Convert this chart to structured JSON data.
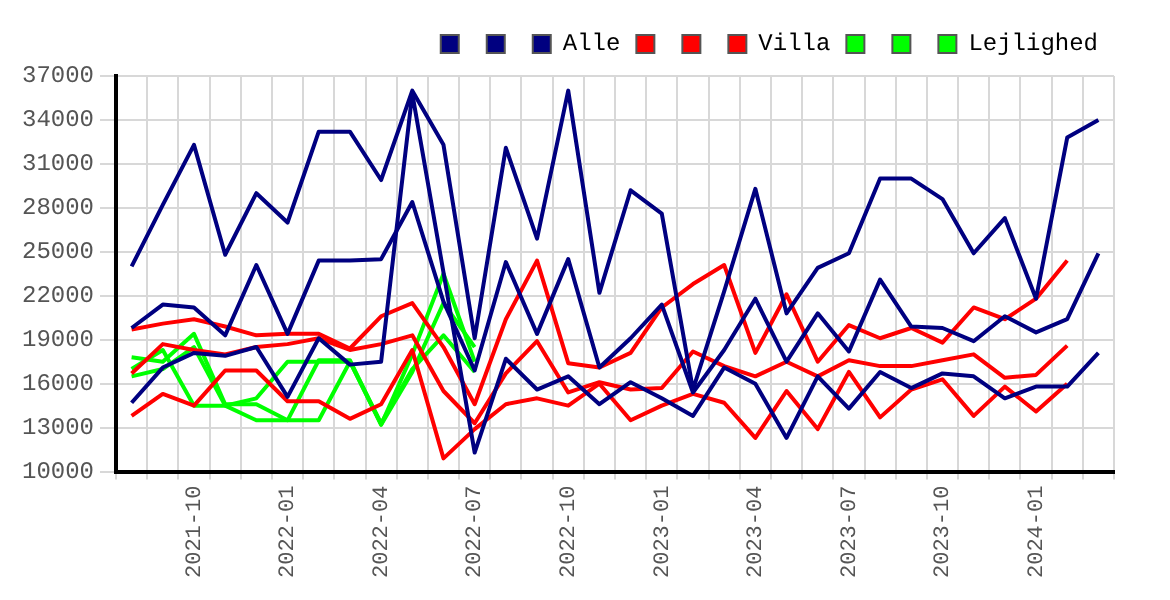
{
  "chart_data": {
    "type": "line",
    "categories": [
      null,
      null,
      "2021-10",
      null,
      null,
      "2022-01",
      null,
      null,
      "2022-04",
      null,
      null,
      "2022-07",
      null,
      null,
      "2022-10",
      null,
      null,
      "2023-01",
      null,
      null,
      "2023-04",
      null,
      null,
      "2023-07",
      null,
      null,
      "2023-10",
      null,
      null,
      "2024-01",
      null,
      null
    ],
    "series": [
      {
        "color": "#000080",
        "values": [
          24000,
          28200,
          32300,
          24800,
          29000,
          27000,
          33200,
          33200,
          29900,
          36000,
          32300,
          19100,
          32100,
          25900,
          36000,
          22200,
          29200,
          27600,
          15600,
          22300,
          29300,
          20800,
          23900,
          24900,
          30000,
          30000,
          28600,
          24900,
          27300,
          21800,
          32800,
          34000
        ]
      },
      {
        "color": "#000080",
        "values": [
          19800,
          21400,
          21200,
          19300,
          24100,
          19400,
          24400,
          24400,
          24500,
          28400,
          21600,
          16900,
          24300,
          19400,
          24500,
          17100,
          19100,
          21400,
          15400,
          18300,
          21800,
          17500,
          20800,
          18200,
          23100,
          19900,
          19800,
          18900,
          20600,
          19500,
          20400,
          24900
        ]
      },
      {
        "name": "Alle",
        "color": "#000080",
        "values": [
          14700,
          17100,
          18100,
          17900,
          18500,
          15100,
          19100,
          17300,
          17500,
          35800,
          23600,
          11300,
          17700,
          15600,
          16500,
          14600,
          16100,
          15000,
          13800,
          17100,
          16000,
          12300,
          16500,
          14300,
          16800,
          15700,
          16700,
          16500,
          15000,
          15800,
          15800,
          18100
        ]
      },
      {
        "color": "#ff0000",
        "values": [
          19700,
          20100,
          20400,
          19900,
          19300,
          19400,
          19400,
          18400,
          20600,
          21500,
          18500,
          14600,
          20400,
          24400,
          17400,
          17100,
          18100,
          21200,
          22800,
          24100,
          18100,
          22100,
          17500,
          20000,
          19100,
          19800,
          18800,
          21200,
          20400,
          21800,
          24400,
          null
        ]
      },
      {
        "color": "#ff0000",
        "values": [
          16700,
          18700,
          18300,
          18000,
          18500,
          18700,
          19100,
          18300,
          18700,
          19300,
          15500,
          13300,
          16700,
          18900,
          15400,
          16100,
          15600,
          15700,
          18200,
          17200,
          16500,
          17500,
          16500,
          17600,
          17200,
          17200,
          17600,
          18000,
          16400,
          16600,
          18600,
          null
        ]
      },
      {
        "name": "Villa",
        "color": "#ff0000",
        "values": [
          13800,
          15300,
          14500,
          16900,
          16900,
          14800,
          14800,
          13600,
          14600,
          18300,
          10900,
          12900,
          14600,
          15000,
          14500,
          16000,
          13500,
          14500,
          15300,
          14700,
          12300,
          15500,
          12900,
          16800,
          13700,
          15600,
          16300,
          13800,
          15800,
          14100,
          16000,
          null
        ]
      },
      {
        "color": "#00ff00",
        "values": [
          17800,
          17500,
          19400,
          14600,
          14600,
          13500,
          13500,
          17500,
          13200,
          18000,
          23500,
          17500,
          null,
          null,
          null,
          null,
          null,
          null,
          null,
          null,
          null,
          null,
          null,
          null,
          null,
          null,
          null,
          null,
          null,
          null,
          null,
          null
        ]
      },
      {
        "color": "#00ff00",
        "values": [
          16500,
          17000,
          18500,
          14500,
          15000,
          17500,
          17500,
          17500,
          13300,
          17000,
          19300,
          16800,
          null,
          null,
          null,
          null,
          null,
          null,
          null,
          null,
          null,
          null,
          null,
          null,
          null,
          null,
          null,
          null,
          null,
          null,
          null,
          null
        ]
      },
      {
        "name": "Lejlighed",
        "color": "#00ff00",
        "values": [
          17000,
          18300,
          14500,
          14500,
          13500,
          13500,
          17600,
          17600,
          13200,
          16800,
          21500,
          18500,
          null,
          null,
          null,
          null,
          null,
          null,
          null,
          null,
          null,
          null,
          null,
          null,
          null,
          null,
          null,
          null,
          null,
          null,
          null,
          null
        ]
      }
    ],
    "ylim": [
      10000,
      37000
    ],
    "yticks": [
      10000,
      13000,
      16000,
      19000,
      22000,
      25000,
      28000,
      31000,
      34000,
      37000
    ],
    "grid": true,
    "legend": "top right",
    "marker": "none",
    "line_style": "solid"
  }
}
